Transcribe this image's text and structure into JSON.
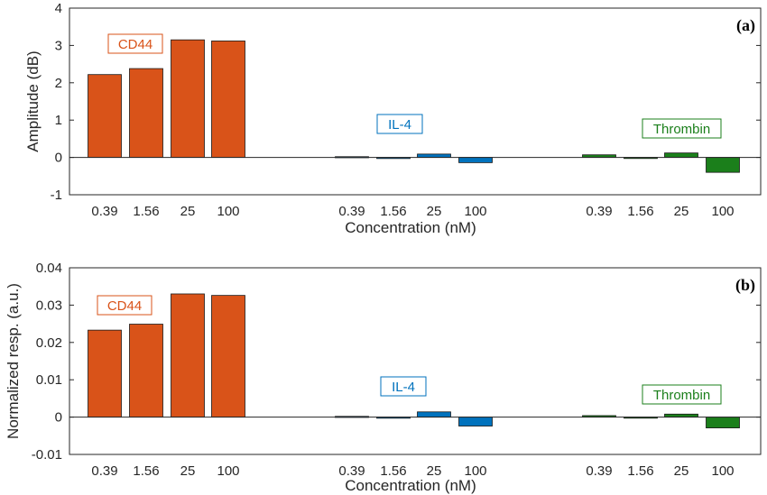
{
  "chart_data": [
    {
      "type": "bar",
      "panel_label": "(a)",
      "xlabel": "Concentration (nM)",
      "ylabel": "Amplitude (dB)",
      "ylim": [
        -1,
        4
      ],
      "yticks": [
        "-1",
        "0",
        "1",
        "2",
        "3",
        "4"
      ],
      "ytick_values": [
        -1,
        0,
        1,
        2,
        3,
        4
      ],
      "categories": [
        "0.39",
        "1.56",
        "25",
        "100"
      ],
      "grid": false,
      "groups": [
        {
          "name": "CD44",
          "color": "#D95319",
          "values": [
            2.22,
            2.38,
            3.15,
            3.12
          ]
        },
        {
          "name": "IL-4",
          "color": "#0072BD",
          "values": [
            0.02,
            -0.03,
            0.09,
            -0.14
          ]
        },
        {
          "name": "Thrombin",
          "color": "#1B7F1B",
          "values": [
            0.07,
            0.0,
            0.12,
            -0.4
          ]
        }
      ]
    },
    {
      "type": "bar",
      "panel_label": "(b)",
      "xlabel": "Concentration (nM)",
      "ylabel": "Normalized resp. (a.u.)",
      "ylim": [
        -0.01,
        0.04
      ],
      "yticks": [
        "-0.01",
        "0",
        "0.01",
        "0.02",
        "0.03",
        "0.04"
      ],
      "ytick_values": [
        -0.01,
        0,
        0.01,
        0.02,
        0.03,
        0.04
      ],
      "categories": [
        "0.39",
        "1.56",
        "25",
        "100"
      ],
      "grid": false,
      "groups": [
        {
          "name": "CD44",
          "color": "#D95319",
          "values": [
            0.0233,
            0.0249,
            0.033,
            0.0326
          ]
        },
        {
          "name": "IL-4",
          "color": "#0072BD",
          "values": [
            0.0002,
            -0.0003,
            0.0014,
            -0.0024
          ]
        },
        {
          "name": "Thrombin",
          "color": "#1B7F1B",
          "values": [
            0.0004,
            0.0,
            0.0008,
            -0.0029
          ]
        }
      ]
    }
  ]
}
